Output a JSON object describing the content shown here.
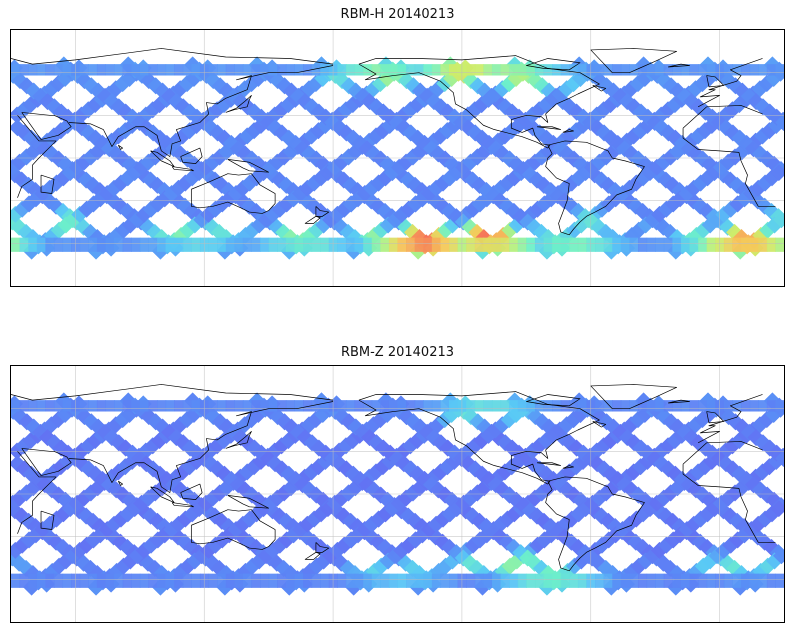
{
  "figure": {
    "panels": [
      {
        "title": "RBM-H 20140213",
        "variable": "RBM-H",
        "date": "20140213",
        "color_scale": "jet",
        "palette": [
          "#6a5cf0",
          "#5a8cf5",
          "#5ac8f5",
          "#6ef0c8",
          "#c8f06e",
          "#f5c85a",
          "#f56e5a"
        ],
        "hotspots": [
          {
            "lon": -140,
            "lat": -58,
            "level": 0.95
          },
          {
            "lon": -110,
            "lat": -56,
            "level": 0.9
          },
          {
            "lon": 10,
            "lat": -58,
            "level": 0.85
          },
          {
            "lon": 115,
            "lat": -54,
            "level": 0.5
          },
          {
            "lon": 165,
            "lat": -56,
            "level": 0.5
          },
          {
            "lon": -70,
            "lat": -60,
            "level": 0.45
          },
          {
            "lon": 45,
            "lat": -45,
            "level": 0.55
          },
          {
            "lon": 20,
            "lat": -43,
            "level": 0.4
          },
          {
            "lon": -160,
            "lat": 58,
            "level": 0.55
          },
          {
            "lon": -120,
            "lat": 60,
            "level": 0.65
          },
          {
            "lon": -100,
            "lat": 58,
            "level": 0.6
          },
          {
            "lon": -88,
            "lat": 55,
            "level": 0.5
          },
          {
            "lon": -60,
            "lat": -45,
            "level": 0.4
          }
        ],
        "baseline": 0.12
      },
      {
        "title": "RBM-Z 20140213",
        "variable": "RBM-Z",
        "date": "20140213",
        "color_scale": "jet",
        "palette": [
          "#6a5cf0",
          "#5a8cf5",
          "#5ac8f5",
          "#6ef0c8",
          "#c8f06e",
          "#f5c85a",
          "#f56e5a"
        ],
        "hotspots": [
          {
            "lon": -100,
            "lat": -48,
            "level": 0.55
          },
          {
            "lon": -80,
            "lat": -58,
            "level": 0.45
          },
          {
            "lon": 10,
            "lat": -50,
            "level": 0.4
          },
          {
            "lon": -110,
            "lat": 58,
            "level": 0.4
          },
          {
            "lon": -150,
            "lat": -55,
            "level": 0.35
          }
        ],
        "baseline": 0.08
      }
    ],
    "map": {
      "projection": "cylindrical",
      "lon_range": [
        30,
        390
      ],
      "lat_range": [
        -90,
        90
      ],
      "gridlines": true,
      "coastlines": true
    }
  }
}
